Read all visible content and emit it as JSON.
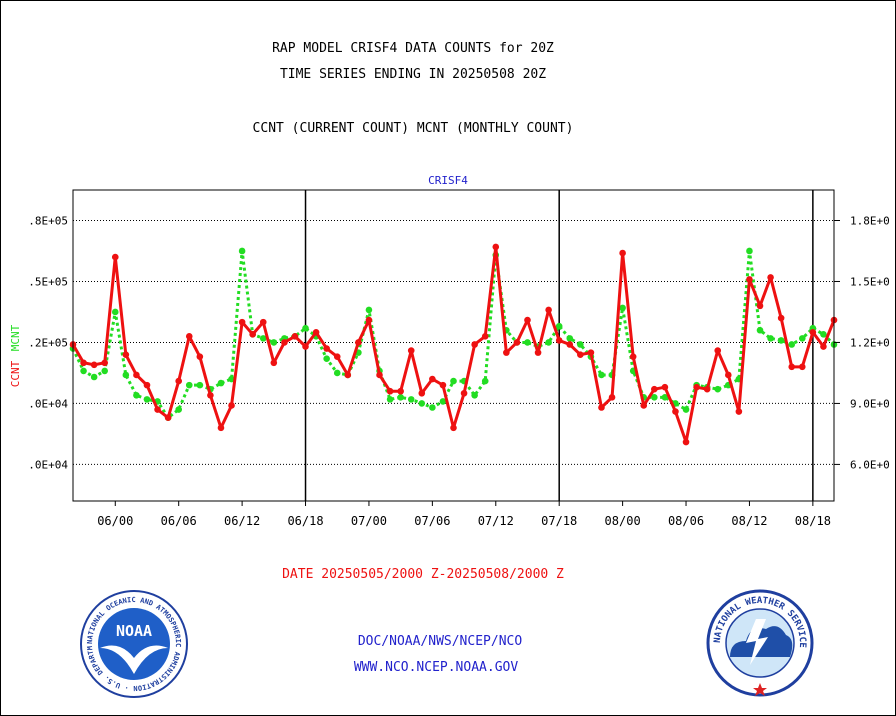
{
  "titles": {
    "line1": "RAP MODEL CRISF4 DATA COUNTS for 20Z",
    "line2": "TIME SERIES ENDING IN 20250508 20Z",
    "line3": "CCNT (CURRENT COUNT) MCNT (MONTHLY COUNT)"
  },
  "footer": {
    "date_range": "DATE 20250505/2000 Z-20250508/2000 Z",
    "org": "DOC/NOAA/NWS/NCEP/NCO",
    "url": "WWW.NCO.NCEP.NOAA.GOV"
  },
  "logos": {
    "noaa": "NOAA",
    "noaa_ring": "NATIONAL OCEANIC AND ATMOSPHERIC ADMINISTRATION · U.S. DEPARTMENT OF COMMERCE ·",
    "nws_ring": "NATIONAL WEATHER SERVICE"
  },
  "colors": {
    "ccnt": "#ee1111",
    "mcnt": "#22dd22",
    "title": "#000000",
    "date": "#ee1111",
    "footer": "#2222cc",
    "panel_label": "#2222cc"
  },
  "chart_data": {
    "type": "line",
    "title": "CRISF4",
    "ylabel_left": [
      "CCNT",
      "MCNT"
    ],
    "y_ticks_left": [
      ".0E+04",
      ".0E+04",
      ".2E+05",
      ".5E+05",
      ".8E+05"
    ],
    "y_ticks_right": [
      "6.0E+0",
      "9.0E+0",
      "1.2E+0",
      "1.5E+0",
      "1.8E+0"
    ],
    "y_tick_values": [
      60000,
      90000,
      120000,
      150000,
      180000
    ],
    "ylim": [
      42000,
      195000
    ],
    "x_tick_labels": [
      "06/00",
      "06/06",
      "06/12",
      "06/18",
      "07/00",
      "07/06",
      "07/12",
      "07/18",
      "08/00",
      "08/06",
      "08/12",
      "08/18"
    ],
    "x_tick_hours": [
      4,
      10,
      16,
      22,
      28,
      34,
      40,
      46,
      52,
      58,
      64,
      70
    ],
    "day_boundaries_hours": [
      22,
      46,
      70
    ],
    "xlim": [
      0,
      72
    ],
    "grid": true,
    "series": [
      {
        "name": "CCNT",
        "values": [
          119000,
          110000,
          109000,
          110000,
          162000,
          114000,
          104000,
          99000,
          87000,
          83000,
          101000,
          123000,
          113000,
          94000,
          78000,
          89000,
          130000,
          124000,
          130000,
          110000,
          120000,
          123000,
          118000,
          125000,
          117000,
          113000,
          104000,
          120000,
          131000,
          104000,
          96000,
          96000,
          116000,
          95000,
          102000,
          99000,
          78000,
          95000,
          119000,
          123000,
          167000,
          115000,
          120000,
          131000,
          115000,
          136000,
          121000,
          119000,
          114000,
          115000,
          88000,
          93000,
          164000,
          113000,
          89000,
          97000,
          98000,
          86000,
          71000,
          98000,
          97000,
          116000,
          104000,
          86000,
          151000,
          138000,
          152000,
          132000,
          108000,
          108000,
          125000,
          118000,
          131000
        ],
        "color": "#ee1111"
      },
      {
        "name": "MCNT",
        "values": [
          117000,
          106000,
          103000,
          106000,
          135000,
          104000,
          94000,
          92000,
          91000,
          83000,
          87000,
          99000,
          99000,
          97000,
          100000,
          102000,
          165000,
          124000,
          122000,
          120000,
          122000,
          123000,
          127000,
          123000,
          112000,
          105000,
          104000,
          115000,
          136000,
          106000,
          92000,
          93000,
          92000,
          90000,
          88000,
          91000,
          101000,
          101000,
          94000,
          101000,
          163000,
          126000,
          120000,
          120000,
          118000,
          120000,
          128000,
          122000,
          119000,
          113000,
          104000,
          104000,
          137000,
          106000,
          93000,
          93000,
          93000,
          90000,
          87000,
          99000,
          98000,
          97000,
          99000,
          102000,
          165000,
          126000,
          122000,
          121000,
          119000,
          122000,
          127000,
          124000,
          119000
        ],
        "color": "#22dd22"
      }
    ]
  }
}
